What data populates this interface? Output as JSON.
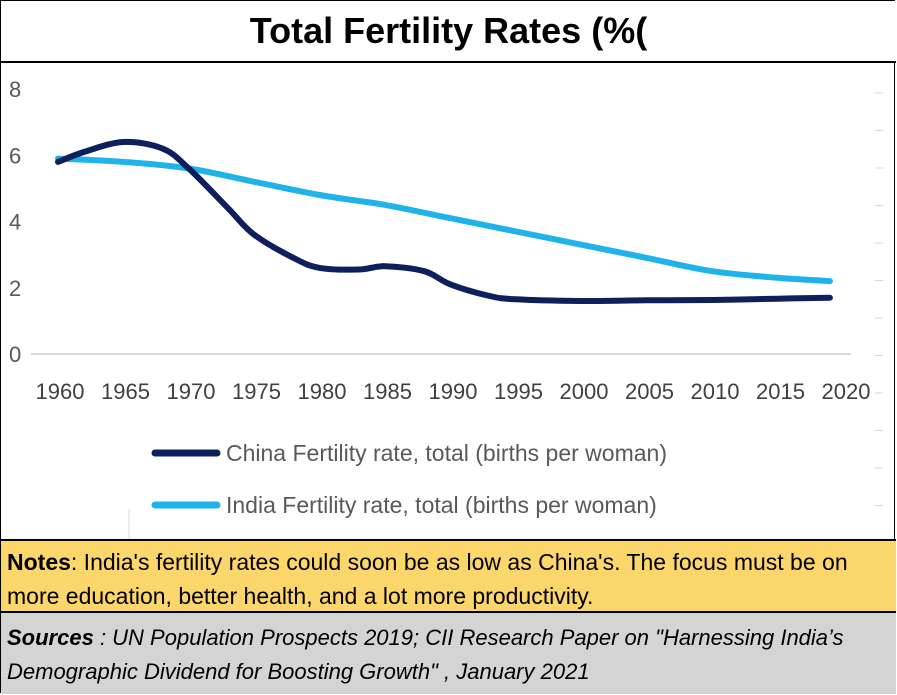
{
  "title": "Total Fertility Rates (%(",
  "chart_data": {
    "type": "line",
    "title": "Total Fertility Rates (%(",
    "xlabel": "",
    "ylabel": "",
    "xlim": [
      1960,
      2020
    ],
    "ylim": [
      0,
      8
    ],
    "y_ticks": [
      "0",
      "2",
      "4",
      "6",
      "8"
    ],
    "x_ticks": [
      "1960",
      "1965",
      "1970",
      "1975",
      "1980",
      "1985",
      "1990",
      "1995",
      "2000",
      "2005",
      "2010",
      "2015",
      "2020"
    ],
    "grid": false,
    "legend_position": "bottom",
    "series": [
      {
        "name": "China Fertility rate, total (births per woman)",
        "color": "#0d1f5c",
        "x": [
          1960,
          1962,
          1965,
          1968,
          1970,
          1973,
          1975,
          1978,
          1980,
          1983,
          1985,
          1988,
          1990,
          1993,
          1995,
          2000,
          2005,
          2010,
          2015,
          2019
        ],
        "y": [
          5.8,
          6.1,
          6.4,
          6.2,
          5.6,
          4.4,
          3.6,
          2.9,
          2.6,
          2.55,
          2.65,
          2.5,
          2.1,
          1.75,
          1.65,
          1.6,
          1.62,
          1.63,
          1.67,
          1.7
        ]
      },
      {
        "name": "India Fertility rate, total (births per woman)",
        "color": "#1fb3ea",
        "x": [
          1960,
          1965,
          1970,
          1975,
          1980,
          1985,
          1990,
          1995,
          2000,
          2005,
          2010,
          2015,
          2019
        ],
        "y": [
          5.9,
          5.8,
          5.6,
          5.2,
          4.8,
          4.5,
          4.1,
          3.7,
          3.3,
          2.9,
          2.5,
          2.3,
          2.2
        ]
      }
    ]
  },
  "notes": {
    "label": "Notes",
    "text": ":  India's fertility rates could soon be as low as China's.  The focus must be on more education, better health, and a lot more productivity."
  },
  "sources": {
    "label": "Sources",
    "text": " : UN Population Prospects 2019; CII Research Paper on \"Harnessing India’s Demographic Dividend for Boosting Growth\" , January 2021"
  }
}
